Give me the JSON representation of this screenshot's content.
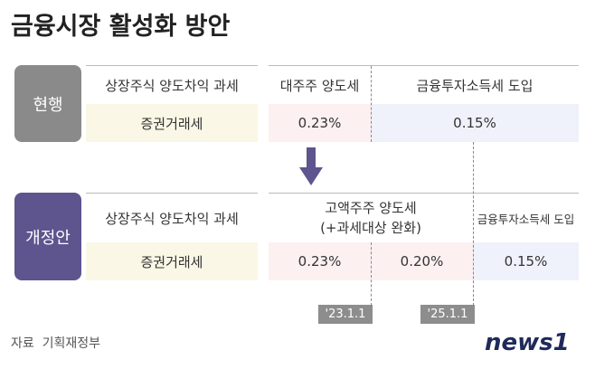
{
  "header": {
    "title": "금융시장 활성화 방안"
  },
  "current": {
    "label": "현행",
    "row1": [
      "상장주식 양도차익 과세",
      "대주주 양도세",
      "금융투자소득세 도입"
    ],
    "row2": [
      "증권거래세",
      "0.23%",
      "0.15%"
    ]
  },
  "revised": {
    "label": "개정안",
    "row1": [
      "상장주식 양도차익 과세",
      [
        "고액주주 양도세",
        "(+과세대상 완화)"
      ],
      "금융투자소득세 도입"
    ],
    "row2": [
      "증권거래세",
      "0.23%",
      "0.20%",
      "0.15%"
    ]
  },
  "dates": [
    "'23.1.1",
    "'25.1.1"
  ],
  "footer": {
    "source": "자료  기획재정부",
    "logo": "news1"
  }
}
